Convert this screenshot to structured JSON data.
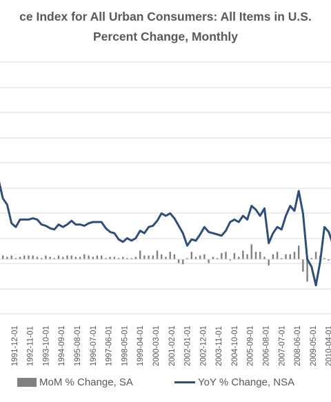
{
  "chart_data": {
    "type": "line",
    "title": "ce Index for All Urban Consumers: All Items in U.S.",
    "subtitle": "Percent Change, Monthly",
    "x_tick_labels": [
      "1991-12-01",
      "1992-11-01",
      "1993-10-01",
      "1994-09-01",
      "1995-08-01",
      "1996-07-01",
      "1997-06-01",
      "1998-05-01",
      "1999-04-01",
      "2000-03-01",
      "2001-02-01",
      "2002-01-01",
      "2002-12-01",
      "2003-11-01",
      "2004-10-01",
      "2005-09-01",
      "2006-08-01",
      "2007-07-01",
      "2008-06-01",
      "2009-05-01",
      "2010-04-01"
    ],
    "gridlines": true,
    "legend_position": "bottom",
    "series": [
      {
        "name": "YoY % Change, NSA",
        "kind": "line",
        "color": "#2e4d7b",
        "x": [
          "1991-01",
          "1991-04",
          "1991-07",
          "1991-10",
          "1992-01",
          "1992-04",
          "1992-07",
          "1992-10",
          "1993-01",
          "1993-04",
          "1993-07",
          "1993-10",
          "1994-01",
          "1994-04",
          "1994-07",
          "1994-10",
          "1995-01",
          "1995-04",
          "1995-07",
          "1995-10",
          "1996-01",
          "1996-04",
          "1996-07",
          "1996-10",
          "1997-01",
          "1997-04",
          "1997-07",
          "1997-10",
          "1998-01",
          "1998-04",
          "1998-07",
          "1998-10",
          "1999-01",
          "1999-04",
          "1999-07",
          "1999-10",
          "2000-01",
          "2000-04",
          "2000-07",
          "2000-10",
          "2001-01",
          "2001-04",
          "2001-07",
          "2001-10",
          "2002-01",
          "2002-04",
          "2002-07",
          "2002-10",
          "2003-01",
          "2003-04",
          "2003-07",
          "2003-10",
          "2004-01",
          "2004-04",
          "2004-07",
          "2004-10",
          "2005-01",
          "2005-04",
          "2005-07",
          "2005-10",
          "2006-01",
          "2006-04",
          "2006-07",
          "2006-10",
          "2007-01",
          "2007-04",
          "2007-07",
          "2007-10",
          "2008-01",
          "2008-04",
          "2008-07",
          "2008-10",
          "2009-01",
          "2009-04",
          "2009-07",
          "2009-10",
          "2010-01",
          "2010-04",
          "2010-07"
        ],
        "values": [
          6.4,
          4.9,
          4.4,
          2.9,
          2.6,
          3.2,
          3.2,
          3.2,
          3.3,
          3.2,
          2.8,
          2.7,
          2.5,
          2.4,
          2.8,
          2.6,
          2.8,
          3.1,
          2.8,
          2.8,
          2.7,
          2.9,
          3.0,
          3.0,
          3.0,
          2.5,
          2.2,
          2.1,
          1.6,
          1.4,
          1.7,
          1.5,
          1.7,
          2.3,
          2.1,
          2.6,
          2.7,
          3.1,
          3.7,
          3.5,
          3.7,
          3.3,
          2.7,
          2.1,
          1.1,
          1.6,
          1.5,
          2.0,
          2.6,
          2.2,
          2.1,
          2.0,
          1.9,
          2.3,
          3.0,
          3.2,
          3.0,
          3.5,
          3.2,
          4.3,
          4.0,
          3.5,
          4.1,
          1.3,
          2.1,
          2.6,
          2.4,
          3.5,
          4.3,
          3.9,
          5.5,
          3.7,
          0.0,
          -0.6,
          -2.1,
          -0.2,
          2.6,
          2.2,
          1.2
        ]
      },
      {
        "name": "MoM % Change, SA",
        "kind": "bar",
        "color": "#808080",
        "x": [
          "1991-01",
          "1991-04",
          "1991-07",
          "1991-10",
          "1992-01",
          "1992-04",
          "1992-07",
          "1992-10",
          "1993-01",
          "1993-04",
          "1993-07",
          "1993-10",
          "1994-01",
          "1994-04",
          "1994-07",
          "1994-10",
          "1995-01",
          "1995-04",
          "1995-07",
          "1995-10",
          "1996-01",
          "1996-04",
          "1996-07",
          "1996-10",
          "1997-01",
          "1997-04",
          "1997-07",
          "1997-10",
          "1998-01",
          "1998-04",
          "1998-07",
          "1998-10",
          "1999-01",
          "1999-04",
          "1999-07",
          "1999-10",
          "2000-01",
          "2000-04",
          "2000-07",
          "2000-10",
          "2001-01",
          "2001-04",
          "2001-07",
          "2001-10",
          "2002-01",
          "2002-04",
          "2002-07",
          "2002-10",
          "2003-01",
          "2003-04",
          "2003-07",
          "2003-10",
          "2004-01",
          "2004-04",
          "2004-07",
          "2004-10",
          "2005-01",
          "2005-04",
          "2005-07",
          "2005-10",
          "2006-01",
          "2006-04",
          "2006-07",
          "2006-10",
          "2007-01",
          "2007-04",
          "2007-07",
          "2007-10",
          "2008-01",
          "2008-04",
          "2008-07",
          "2008-10",
          "2009-01",
          "2009-04",
          "2009-07",
          "2009-10",
          "2010-01",
          "2010-04",
          "2010-07"
        ],
        "values": [
          0.4,
          0.3,
          0.2,
          0.3,
          0.1,
          0.2,
          0.3,
          0.3,
          0.3,
          0.2,
          0.1,
          0.3,
          0.2,
          0.1,
          0.3,
          0.2,
          0.3,
          0.3,
          0.2,
          0.2,
          0.4,
          0.3,
          0.2,
          0.3,
          0.3,
          0.1,
          0.2,
          0.2,
          0.1,
          0.2,
          0.1,
          0.1,
          0.2,
          0.7,
          0.3,
          0.3,
          0.3,
          0.7,
          0.4,
          0.2,
          0.6,
          0.4,
          -0.3,
          -0.4,
          0.1,
          0.6,
          0.2,
          0.3,
          0.4,
          -0.3,
          0.2,
          0.1,
          0.5,
          0.6,
          -0.1,
          0.5,
          0.2,
          0.7,
          0.4,
          1.2,
          0.6,
          0.6,
          0.2,
          -0.5,
          0.4,
          0.6,
          0.1,
          0.4,
          0.4,
          0.6,
          1.1,
          -1.0,
          -1.8,
          0.1,
          0.6,
          0.3,
          0.1,
          -0.1,
          0.2
        ]
      }
    ]
  }
}
